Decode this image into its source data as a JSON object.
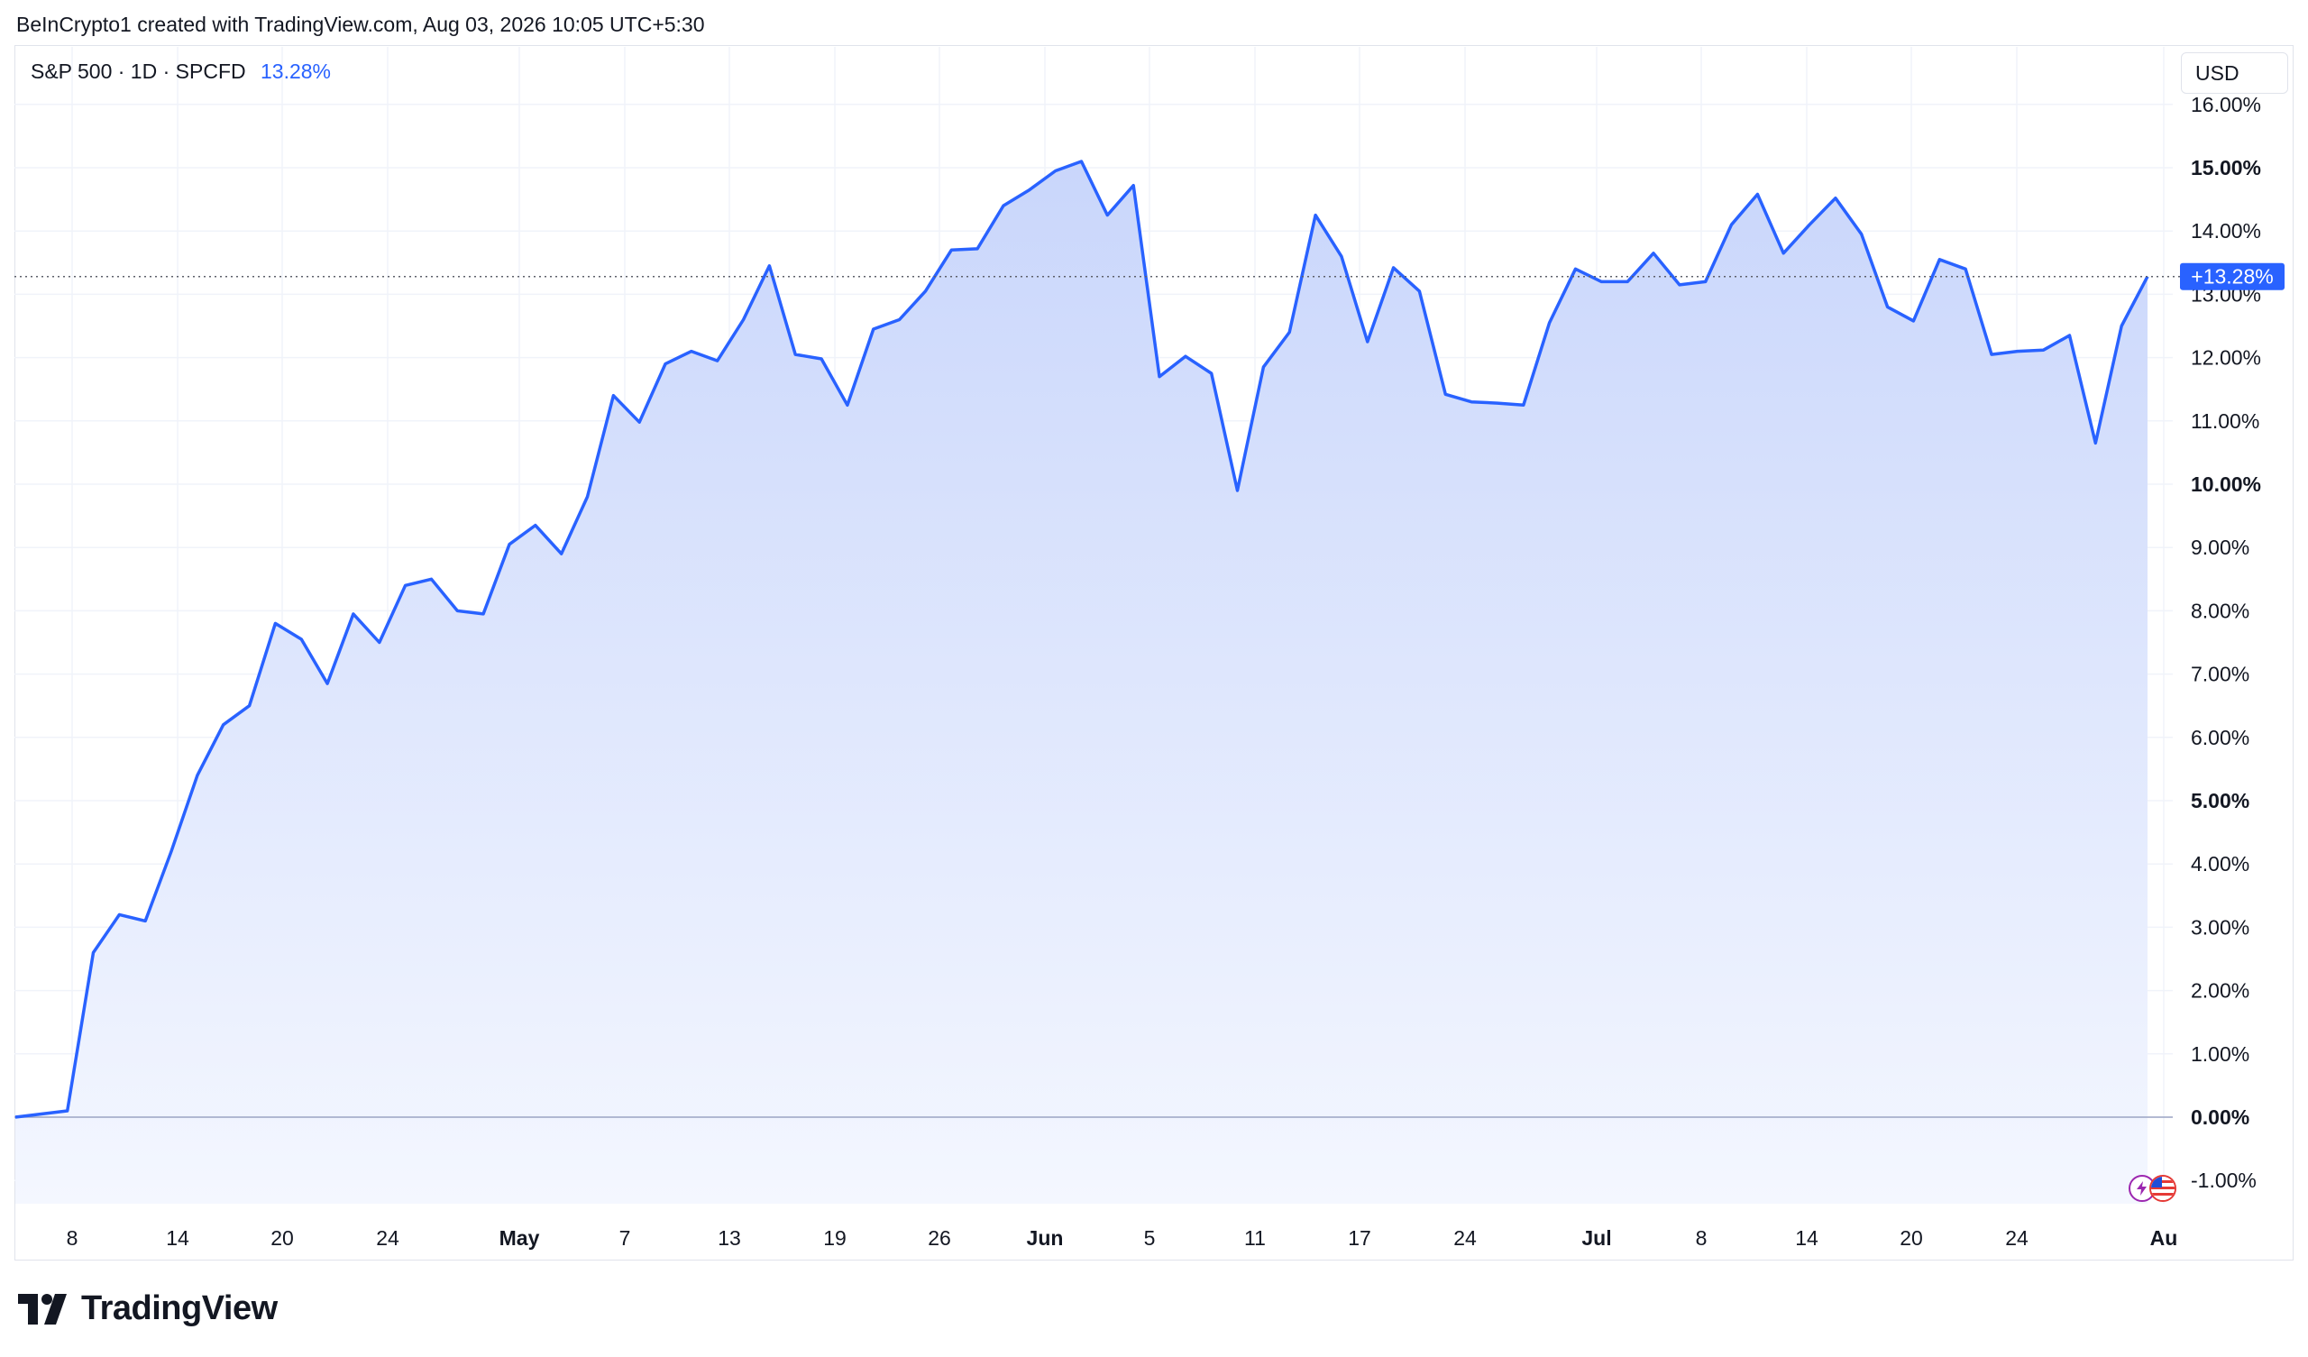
{
  "header": {
    "credit": "BeInCrypto1 created with TradingView.com, Aug 03, 2026 10:05 UTC+5:30"
  },
  "legend": {
    "symbol": "S&P 500 · 1D · SPCFD",
    "change": "13.28%"
  },
  "currency_button": "USD",
  "brand": {
    "name": "TradingView"
  },
  "colors": {
    "line": "#2962ff",
    "area_top": "#c9d6fb",
    "area_bottom": "#f4f7ff",
    "grid": "#f0f3fa",
    "zero_line": "#9aa3c4",
    "price_label_bg": "#2962ff"
  },
  "chart_data": {
    "type": "area",
    "title": "S&P 500 · 1D · SPCFD",
    "ylabel": "",
    "xlabel": "",
    "y_unit": "%",
    "ylim": [
      -1.4,
      16.3
    ],
    "grid": true,
    "last_value_label": "+13.28%",
    "x_tick_labels": [
      "8",
      "14",
      "20",
      "24",
      "May",
      "7",
      "13",
      "19",
      "26",
      "Jun",
      "5",
      "11",
      "17",
      "24",
      "Jul",
      "8",
      "14",
      "20",
      "24",
      "Au"
    ],
    "y_tick_labels": [
      "16.00%",
      "15.00%",
      "14.00%",
      "13.00%",
      "12.00%",
      "11.00%",
      "10.00%",
      "9.00%",
      "8.00%",
      "7.00%",
      "6.00%",
      "5.00%",
      "4.00%",
      "3.00%",
      "2.00%",
      "1.00%",
      "0.00%",
      "-1.00%"
    ],
    "y_tick_values": [
      16,
      15,
      14,
      13,
      12,
      11,
      10,
      9,
      8,
      7,
      6,
      5,
      4,
      3,
      2,
      1,
      0,
      -1
    ],
    "y_tick_bold": [
      false,
      true,
      false,
      false,
      false,
      false,
      true,
      false,
      false,
      false,
      false,
      true,
      false,
      false,
      false,
      false,
      true,
      false
    ],
    "series": [
      {
        "values": [
          0.0,
          0.05,
          0.1,
          2.6,
          3.2,
          3.1,
          4.2,
          5.4,
          6.2,
          6.5,
          7.8,
          7.55,
          6.85,
          7.95,
          7.5,
          8.4,
          8.5,
          8.0,
          7.95,
          9.05,
          9.35,
          8.9,
          9.8,
          11.4,
          10.98,
          11.9,
          12.1,
          11.95,
          12.6,
          13.45,
          12.05,
          11.98,
          11.25,
          12.45,
          12.6,
          13.05,
          13.7,
          13.72,
          14.4,
          14.65,
          14.95,
          15.1,
          14.25,
          14.72,
          11.7,
          12.02,
          11.75,
          9.9,
          11.85,
          12.4,
          14.25,
          13.6,
          12.25,
          13.42,
          13.05,
          11.42,
          11.3,
          11.28,
          11.25,
          12.55,
          13.4,
          13.2,
          13.2,
          13.65,
          13.15,
          13.2,
          14.1,
          14.58,
          13.65,
          14.1,
          14.52,
          13.95,
          12.8,
          12.58,
          13.55,
          13.4,
          12.05,
          12.1,
          12.12,
          12.35,
          10.65,
          12.5,
          13.28
        ]
      }
    ]
  }
}
